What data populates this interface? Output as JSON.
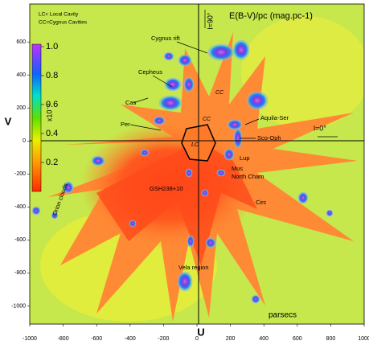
{
  "chart_data": {
    "type": "map",
    "title": "E(B-V)/pc  (mag.pc-1)",
    "x_label": "U",
    "y_label": "V",
    "xlim": [
      -1000,
      1000
    ],
    "ylim": [
      -1110,
      830
    ],
    "xticks": [
      -1000,
      -800,
      -600,
      -400,
      -200,
      0,
      200,
      400,
      600,
      800,
      1000
    ],
    "yticks": [
      -1000,
      -800,
      -600,
      -400,
      -200,
      0,
      200,
      400,
      600
    ],
    "colorbar": {
      "label": "x10⁻³",
      "lim": [
        0,
        1
      ],
      "ticks": [
        {
          "value": 1,
          "label": "1.0"
        },
        0.8,
        0.6,
        0.4,
        0.2
      ]
    },
    "legend_lines": [
      "LC= Local Cavity",
      "CC=Cygnus Cavities"
    ],
    "annotations": [
      "Cygnus rift",
      "Cepheus",
      "Cas",
      "Per",
      "CC",
      "CC",
      "LC",
      "Aquila-Ser",
      "Sco-Oph",
      "Lup",
      "Mus",
      "North Cham",
      "Orion clouds",
      "GSH238+10",
      "Circ",
      "Vela region",
      "parsecs",
      "l=90°",
      "l=0°"
    ]
  }
}
